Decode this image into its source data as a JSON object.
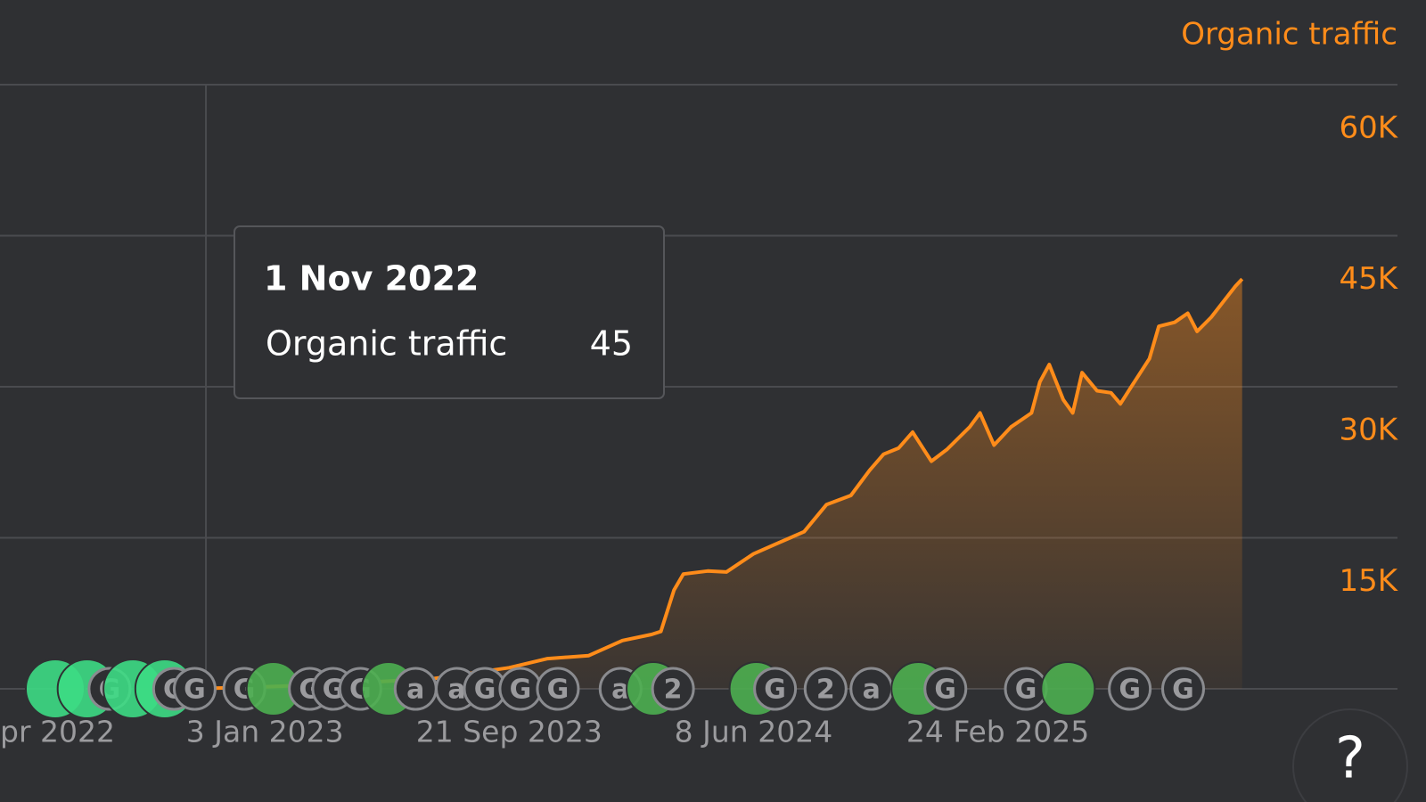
{
  "chart_data": {
    "type": "line",
    "title": "Organic traffic",
    "x": [
      "2022-11-01",
      "2023-01-03",
      "2023-03-01",
      "2023-05-01",
      "2023-07-01",
      "2023-09-21",
      "2023-11-01",
      "2023-12-15",
      "2024-01-20",
      "2024-02-20",
      "2024-03-01",
      "2024-03-15",
      "2024-03-25",
      "2024-04-20",
      "2024-05-10",
      "2024-06-08",
      "2024-07-05",
      "2024-08-01",
      "2024-08-25",
      "2024-09-20",
      "2024-10-10",
      "2024-10-25",
      "2024-11-10",
      "2024-11-25",
      "2024-12-15",
      "2025-01-01",
      "2025-01-25",
      "2025-02-05",
      "2025-02-20",
      "2025-03-10",
      "2025-04-01",
      "2025-04-10",
      "2025-04-20",
      "2025-05-05",
      "2025-05-15",
      "2025-05-25",
      "2025-06-10",
      "2025-06-25",
      "2025-07-05",
      "2025-07-20",
      "2025-08-05",
      "2025-08-15",
      "2025-09-01",
      "2025-09-15",
      "2025-09-25",
      "2025-10-10",
      "2025-10-25",
      "2025-11-05",
      "2025-11-12"
    ],
    "series": [
      {
        "name": "Organic traffic",
        "color": "#ff8c1a",
        "values": [
          45,
          200,
          400,
          700,
          1000,
          2100,
          3000,
          3300,
          4800,
          5400,
          5700,
          9800,
          11400,
          11700,
          11600,
          13400,
          14500,
          15600,
          18300,
          19200,
          21700,
          23300,
          23900,
          25500,
          22600,
          23800,
          26000,
          27400,
          24200,
          26000,
          27400,
          30500,
          32200,
          28700,
          27400,
          31400,
          29600,
          29400,
          28300,
          30500,
          32800,
          36000,
          36400,
          37300,
          35500,
          36900,
          38700,
          40000,
          40700
        ]
      }
    ],
    "xlim": [
      "2022-03-26",
      "2026-04-27"
    ],
    "xticks": [
      {
        "value": "2022-04-16",
        "label": "pr 2022"
      },
      {
        "value": "2023-01-03",
        "label": "3 Jan 2023"
      },
      {
        "value": "2023-09-21",
        "label": "21 Sep 2023"
      },
      {
        "value": "2024-06-08",
        "label": "8 Jun 2024"
      },
      {
        "value": "2025-02-24",
        "label": "24 Feb 2025"
      }
    ],
    "ylim": [
      0,
      60000
    ],
    "yticks": [
      {
        "value": 15000,
        "label": "15K"
      },
      {
        "value": 30000,
        "label": "30K"
      },
      {
        "value": 45000,
        "label": "45K"
      },
      {
        "value": 60000,
        "label": "60K"
      }
    ],
    "grid": true,
    "tooltip": {
      "x": "2022-11-01",
      "date": "1 Nov 2022",
      "value": 45
    },
    "markers": [
      {
        "x": "2022-05-24",
        "label": null
      },
      {
        "x": "2022-06-27",
        "label": null
      },
      {
        "x": "2022-07-21",
        "label": "G"
      },
      {
        "x": "2022-08-15",
        "label": null
      },
      {
        "x": "2022-09-18",
        "label": null
      },
      {
        "x": "2022-09-28",
        "label": "G"
      },
      {
        "x": "2022-10-20",
        "label": "G"
      },
      {
        "x": "2022-12-12",
        "label": "G"
      },
      {
        "x": "2023-01-12",
        "label": null
      },
      {
        "x": "2023-02-20",
        "label": "G"
      },
      {
        "x": "2023-03-17",
        "label": "G"
      },
      {
        "x": "2023-04-15",
        "label": "G"
      },
      {
        "x": "2023-05-15",
        "label": null
      },
      {
        "x": "2023-06-13",
        "label": "a"
      },
      {
        "x": "2023-07-27",
        "label": "a"
      },
      {
        "x": "2023-08-26",
        "label": "G"
      },
      {
        "x": "2023-10-03",
        "label": "G"
      },
      {
        "x": "2023-11-12",
        "label": "G"
      },
      {
        "x": "2024-01-18",
        "label": "a"
      },
      {
        "x": "2024-02-22",
        "label": null
      },
      {
        "x": "2024-03-14",
        "label": "2"
      },
      {
        "x": "2024-06-11",
        "label": null
      },
      {
        "x": "2024-07-01",
        "label": "G"
      },
      {
        "x": "2024-08-24",
        "label": "2"
      },
      {
        "x": "2024-10-12",
        "label": "a"
      },
      {
        "x": "2024-12-01",
        "label": null
      },
      {
        "x": "2024-12-30",
        "label": "G"
      },
      {
        "x": "2025-03-26",
        "label": "G"
      },
      {
        "x": "2025-05-10",
        "label": null
      },
      {
        "x": "2025-07-15",
        "label": "G"
      },
      {
        "x": "2025-09-10",
        "label": "G"
      }
    ],
    "help_button": "?"
  }
}
